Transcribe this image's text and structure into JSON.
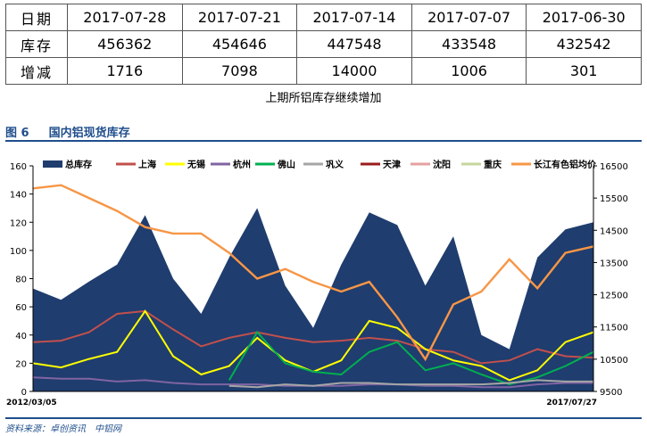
{
  "table": {
    "header_label": "日期",
    "rows": [
      {
        "label": "库存",
        "values": [
          "456362",
          "454646",
          "447548",
          "433548",
          "432542"
        ]
      },
      {
        "label": "增减",
        "values": [
          "1716",
          "7098",
          "14000",
          "1006",
          "301"
        ]
      }
    ],
    "dates": [
      "2017-07-28",
      "2017-07-21",
      "2017-07-14",
      "2017-07-07",
      "2017-06-30"
    ]
  },
  "caption": "上期所铝库存继续增加",
  "figure": {
    "number": "图 6",
    "title": "国内铝现货库存"
  },
  "source": {
    "label": "资料来源：卓创资讯",
    "org": "中铝网"
  },
  "chart_data": {
    "type": "area",
    "x_start": "2012/03/05",
    "x_end": "2017/07/27",
    "ylim_left": [
      0,
      160
    ],
    "yticks_left": [
      0,
      20,
      40,
      60,
      80,
      100,
      120,
      140,
      160
    ],
    "ylim_right": [
      9500,
      16500
    ],
    "yticks_right": [
      9500,
      10500,
      11500,
      12500,
      13500,
      14500,
      15500,
      16500
    ],
    "legend_position": "top",
    "x_pct": [
      0,
      5,
      10,
      15,
      20,
      25,
      30,
      35,
      40,
      45,
      50,
      55,
      60,
      65,
      70,
      75,
      80,
      85,
      90,
      95,
      100
    ],
    "series": [
      {
        "name": "总库存",
        "kind": "area",
        "axis": "left",
        "color": "#1f3d6e",
        "values": [
          73,
          65,
          78,
          90,
          125,
          80,
          55,
          95,
          130,
          75,
          45,
          90,
          127,
          118,
          75,
          110,
          40,
          30,
          95,
          115,
          120
        ]
      },
      {
        "name": "上海",
        "kind": "line",
        "axis": "left",
        "color": "#c0504d",
        "values": [
          35,
          36,
          42,
          55,
          57,
          44,
          32,
          38,
          42,
          38,
          35,
          36,
          38,
          36,
          30,
          28,
          20,
          22,
          30,
          25,
          24
        ]
      },
      {
        "name": "无锡",
        "kind": "line",
        "axis": "left",
        "color": "#ffff00",
        "values": [
          20,
          17,
          23,
          28,
          57,
          25,
          12,
          18,
          38,
          22,
          14,
          22,
          50,
          45,
          30,
          22,
          18,
          8,
          15,
          35,
          42
        ]
      },
      {
        "name": "杭州",
        "kind": "line",
        "axis": "left",
        "color": "#8064a2",
        "values": [
          10,
          9,
          9,
          7,
          8,
          6,
          5,
          5,
          5,
          4,
          4,
          4,
          5,
          5,
          4,
          4,
          3,
          3,
          5,
          6,
          6
        ]
      },
      {
        "name": "佛山",
        "kind": "line",
        "axis": "left",
        "color": "#00b050",
        "values": [
          null,
          null,
          null,
          null,
          null,
          null,
          null,
          8,
          42,
          20,
          14,
          12,
          28,
          35,
          15,
          20,
          12,
          5,
          10,
          18,
          28
        ]
      },
      {
        "name": "巩义",
        "kind": "line",
        "axis": "left",
        "color": "#a6a6a6",
        "values": [
          null,
          null,
          null,
          null,
          null,
          null,
          null,
          4,
          3,
          5,
          4,
          6,
          6,
          5,
          5,
          5,
          5,
          6,
          8,
          7,
          7
        ]
      },
      {
        "name": "天津",
        "kind": "line",
        "axis": "left",
        "color": "#9b1b1b",
        "values": [
          null,
          null,
          null,
          null,
          null,
          null,
          null,
          null,
          null,
          null,
          null,
          null,
          null,
          null,
          null,
          null,
          null,
          null,
          null,
          null,
          null
        ]
      },
      {
        "name": "沈阳",
        "kind": "line",
        "axis": "left",
        "color": "#e6a0a0",
        "values": [
          null,
          null,
          null,
          null,
          null,
          null,
          null,
          null,
          null,
          null,
          null,
          null,
          null,
          null,
          null,
          null,
          null,
          null,
          null,
          null,
          null
        ]
      },
      {
        "name": "重庆",
        "kind": "line",
        "axis": "left",
        "color": "#c4d79b",
        "values": [
          null,
          null,
          null,
          null,
          null,
          null,
          null,
          null,
          null,
          null,
          null,
          null,
          null,
          null,
          null,
          null,
          null,
          null,
          null,
          null,
          null
        ]
      },
      {
        "name": "长江有色铝均价",
        "kind": "line",
        "axis": "right",
        "color": "#f79646",
        "values": [
          15800,
          15900,
          15500,
          15100,
          14600,
          14400,
          14400,
          13800,
          13000,
          13300,
          12900,
          12600,
          12900,
          11800,
          10500,
          12200,
          12600,
          13600,
          12700,
          13800,
          14000
        ]
      }
    ]
  }
}
